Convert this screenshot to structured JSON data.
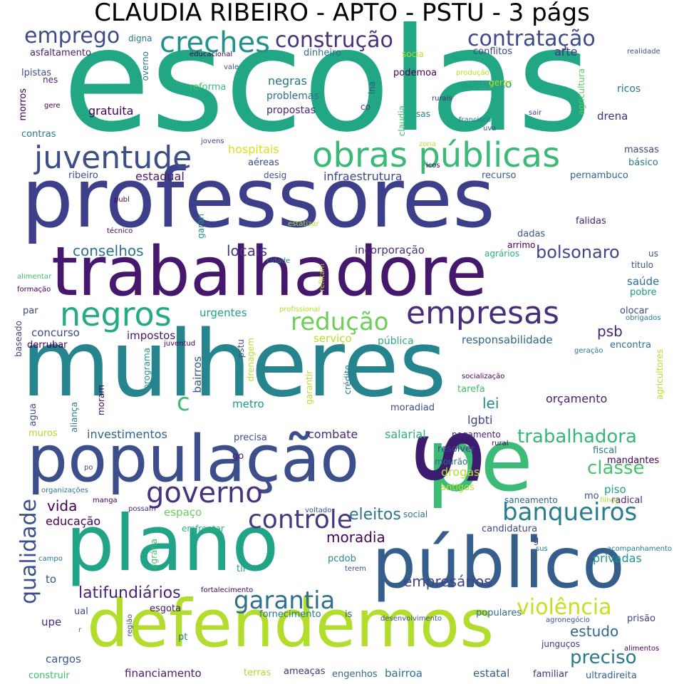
{
  "title": "CLAUDIA RIBEIRO - APTO - PSTU - 3 págs",
  "colormap": "viridis",
  "words": [
    {
      "text": "escolas",
      "weight": 1.0,
      "color": "#22a784"
    },
    {
      "text": "professores",
      "weight": 0.92,
      "color": "#3d3f8b"
    },
    {
      "text": "mulheres",
      "weight": 0.9,
      "color": "#25848e"
    },
    {
      "text": "trabalhadore",
      "weight": 0.78,
      "color": "#45186d"
    },
    {
      "text": "plano",
      "weight": 0.7,
      "color": "#20a386"
    },
    {
      "text": "defendemos",
      "weight": 0.68,
      "color": "#b2dd2d"
    },
    {
      "text": "público",
      "weight": 0.64,
      "color": "#355e8d"
    },
    {
      "text": "população",
      "weight": 0.58,
      "color": "#3c4f8a"
    },
    {
      "text": "pe",
      "weight": 0.55,
      "color": "#3bbb75"
    },
    {
      "text": "s",
      "weight": 0.5,
      "color": "#3b1c6f"
    },
    {
      "text": "obras públicas",
      "weight": 0.4,
      "color": "#3aba76"
    },
    {
      "text": "juventude",
      "weight": 0.38,
      "color": "#3d4e8a"
    },
    {
      "text": "negros",
      "weight": 0.36,
      "color": "#25ab82"
    },
    {
      "text": "empresas",
      "weight": 0.35,
      "color": "#472d7b"
    },
    {
      "text": "governo",
      "weight": 0.34,
      "color": "#46337e"
    },
    {
      "text": "creches",
      "weight": 0.33,
      "color": "#21918c"
    },
    {
      "text": "controle",
      "weight": 0.32,
      "color": "#443983"
    },
    {
      "text": "banqueiros",
      "weight": 0.3,
      "color": "#277f8e"
    },
    {
      "text": "garantia",
      "weight": 0.3,
      "color": "#2c718e"
    },
    {
      "text": "redução",
      "weight": 0.29,
      "color": "#6ece58"
    },
    {
      "text": "emprego",
      "weight": 0.28,
      "color": "#3e4c8a"
    },
    {
      "text": "contratação",
      "weight": 0.28,
      "color": "#3e4a89"
    },
    {
      "text": "construção",
      "weight": 0.27,
      "color": "#46327e"
    },
    {
      "text": "qualidade",
      "weight": 0.28,
      "color": "#3b518b"
    },
    {
      "text": "violência",
      "weight": 0.27,
      "color": "#c5e021"
    },
    {
      "text": "preciso",
      "weight": 0.25,
      "color": "#2a778e"
    },
    {
      "text": "trabalhadora",
      "weight": 0.24,
      "color": "#35b779"
    },
    {
      "text": "classe",
      "weight": 0.23,
      "color": "#4ac16d"
    },
    {
      "text": "bolsonaro",
      "weight": 0.22,
      "color": "#3f4788"
    },
    {
      "text": "latifundiários",
      "weight": 0.21,
      "color": "#482576"
    },
    {
      "text": "eleitos",
      "weight": 0.21,
      "color": "#2a768e"
    },
    {
      "text": "moradia",
      "weight": 0.21,
      "color": "#450457"
    },
    {
      "text": "c",
      "weight": 0.2,
      "color": "#3fbc73"
    },
    {
      "text": "vida",
      "weight": 0.19,
      "color": "#440154"
    },
    {
      "text": "empresários",
      "weight": 0.19,
      "color": "#404588"
    },
    {
      "text": "estudo",
      "weight": 0.19,
      "color": "#31688e"
    },
    {
      "text": "conselhos",
      "weight": 0.17,
      "color": "#2d718e"
    },
    {
      "text": "locais",
      "weight": 0.17,
      "color": "#453781"
    },
    {
      "text": "psb",
      "weight": 0.17,
      "color": "#482475"
    },
    {
      "text": "lei",
      "weight": 0.17,
      "color": "#24878e"
    },
    {
      "text": "privadas",
      "weight": 0.15,
      "color": "#1f958b"
    },
    {
      "text": "hospitais",
      "weight": 0.14,
      "color": "#d8e219"
    },
    {
      "text": "estadual",
      "weight": 0.14,
      "color": "#481a6c"
    },
    {
      "text": "infraestrutura",
      "weight": 0.14,
      "color": "#3e4989"
    },
    {
      "text": "gratuita",
      "weight": 0.14,
      "color": "#440154"
    },
    {
      "text": "negras",
      "weight": 0.14,
      "color": "#2c728e"
    },
    {
      "text": "aumento",
      "weight": 0.14,
      "color": "#1f9e89"
    },
    {
      "text": "arte",
      "weight": 0.14,
      "color": "#46337e"
    },
    {
      "text": "orçamento",
      "weight": 0.14,
      "color": "#482173"
    },
    {
      "text": "lgbti",
      "weight": 0.14,
      "color": "#3f4889"
    },
    {
      "text": "combate",
      "weight": 0.14,
      "color": "#472c7a"
    },
    {
      "text": "salarial",
      "weight": 0.14,
      "color": "#2db27d"
    },
    {
      "text": "drogas",
      "weight": 0.14,
      "color": "#b5de2b"
    },
    {
      "text": "investimentos",
      "weight": 0.14,
      "color": "#33638d"
    },
    {
      "text": "educação",
      "weight": 0.14,
      "color": "#440154"
    },
    {
      "text": "incorporação",
      "weight": 0.13,
      "color": "#472f7d"
    },
    {
      "text": "responsabilidade",
      "weight": 0.13,
      "color": "#33638d"
    },
    {
      "text": "impostos",
      "weight": 0.13,
      "color": "#481769"
    },
    {
      "text": "urgentes",
      "weight": 0.13,
      "color": "#1fa088"
    },
    {
      "text": "concurso",
      "weight": 0.13,
      "color": "#3e4a89"
    },
    {
      "text": "metro",
      "weight": 0.13,
      "color": "#1f978b"
    },
    {
      "text": "bairros",
      "weight": 0.13,
      "color": "#3a538b"
    },
    {
      "text": "financiamento",
      "weight": 0.13,
      "color": "#482071"
    },
    {
      "text": "cargos",
      "weight": 0.13,
      "color": "#39568c"
    },
    {
      "text": "to",
      "weight": 0.13,
      "color": "#3d4d8a"
    },
    {
      "text": "upe",
      "weight": 0.13,
      "color": "#482576"
    },
    {
      "text": "espaço",
      "weight": 0.13,
      "color": "#6ccd5a"
    },
    {
      "text": "saúde",
      "weight": 0.13,
      "color": "#2e6e8e"
    },
    {
      "text": "piso",
      "weight": 0.13,
      "color": "#1f9e89"
    },
    {
      "text": "serviço",
      "weight": 0.13,
      "color": "#b8de29"
    },
    {
      "text": "pública",
      "weight": 0.12,
      "color": "#2ab07f"
    },
    {
      "text": "propostas",
      "weight": 0.12,
      "color": "#482878"
    },
    {
      "text": "problemas",
      "weight": 0.12,
      "color": "#2d708e"
    },
    {
      "text": "reforma",
      "weight": 0.11,
      "color": "#3fbc73"
    },
    {
      "text": "dinheiro",
      "weight": 0.11,
      "color": "#2e6d8e"
    },
    {
      "text": "conflitos",
      "weight": 0.11,
      "color": "#3f4889"
    },
    {
      "text": "asfaltamento",
      "weight": 0.11,
      "color": "#481b6d"
    },
    {
      "text": "lpistas",
      "weight": 0.11,
      "color": "#3b528b"
    },
    {
      "text": "podemoa",
      "weight": 0.11,
      "color": "#440154"
    },
    {
      "text": "ricos",
      "weight": 0.11,
      "color": "#2a788e"
    },
    {
      "text": "drena",
      "weight": 0.12,
      "color": "#472c7a"
    },
    {
      "text": "massas",
      "weight": 0.11,
      "color": "#3e4a89"
    },
    {
      "text": "pernambuco",
      "weight": 0.11,
      "color": "#33638d"
    },
    {
      "text": "recurso",
      "weight": 0.11,
      "color": "#365c8d"
    },
    {
      "text": "dadas",
      "weight": 0.11,
      "color": "#38598c"
    },
    {
      "text": "falidas",
      "weight": 0.11,
      "color": "#482677"
    },
    {
      "text": "aéreas",
      "weight": 0.11,
      "color": "#3e4989"
    },
    {
      "text": "desig",
      "weight": 0.1,
      "color": "#3b528b"
    },
    {
      "text": "contras",
      "weight": 0.11,
      "color": "#2a778e"
    },
    {
      "text": "ribeiro",
      "weight": 0.11,
      "color": "#3e4c8a"
    },
    {
      "text": "morros",
      "weight": 0.11,
      "color": "#440154"
    },
    {
      "text": "estatal",
      "weight": 0.12,
      "color": "#365d8d"
    },
    {
      "text": "familiar",
      "weight": 0.11,
      "color": "#46327e"
    },
    {
      "text": "ultradireita",
      "weight": 0.11,
      "color": "#33638d"
    },
    {
      "text": "bairroa",
      "weight": 0.12,
      "color": "#2b748e"
    },
    {
      "text": "engenhos",
      "weight": 0.11,
      "color": "#31688e"
    },
    {
      "text": "ameaças",
      "weight": 0.11,
      "color": "#46337e"
    },
    {
      "text": "terras",
      "weight": 0.11,
      "color": "#addc30"
    },
    {
      "text": "construir",
      "weight": 0.11,
      "color": "#3dbc74"
    },
    {
      "text": "junguços",
      "weight": 0.1,
      "color": "#453781"
    },
    {
      "text": "prisão",
      "weight": 0.11,
      "color": "#3f4788"
    },
    {
      "text": "populares",
      "weight": 0.11,
      "color": "#2e6e8e"
    },
    {
      "text": "fornecimento",
      "weight": 0.11,
      "color": "#2a768e"
    },
    {
      "text": "esgota",
      "weight": 0.11,
      "color": "#481668"
    },
    {
      "text": "ual",
      "weight": 0.11,
      "color": "#3d4d8a"
    },
    {
      "text": "pcdob",
      "weight": 0.11,
      "color": "#228c8d"
    },
    {
      "text": "tir",
      "weight": 0.11,
      "color": "#1f9e89"
    },
    {
      "text": "candidatura",
      "weight": 0.11,
      "color": "#3f4889"
    },
    {
      "text": "radical",
      "weight": 0.11,
      "color": "#482878"
    },
    {
      "text": "pobre",
      "weight": 0.11,
      "color": "#1f978b"
    },
    {
      "text": "olocar",
      "weight": 0.11,
      "color": "#3e4a89"
    },
    {
      "text": "encontra",
      "weight": 0.11,
      "color": "#2c718e"
    },
    {
      "text": "fiscal",
      "weight": 0.11,
      "color": "#2a768e"
    },
    {
      "text": "mandantes",
      "weight": 0.11,
      "color": "#440154"
    },
    {
      "text": "resolver",
      "weight": 0.11,
      "color": "#414487"
    },
    {
      "text": "pagamento",
      "weight": 0.1,
      "color": "#482173"
    },
    {
      "text": "moradiad",
      "weight": 0.11,
      "color": "#3e4c8a"
    },
    {
      "text": "tarefa",
      "weight": 0.11,
      "color": "#3fbc73"
    },
    {
      "text": "precisa",
      "weight": 0.11,
      "color": "#3b518b"
    },
    {
      "text": "muros",
      "weight": 0.11,
      "color": "#b2dd2d"
    },
    {
      "text": "agua",
      "weight": 0.11,
      "color": "#3b528b"
    },
    {
      "text": "par",
      "weight": 0.11,
      "color": "#3f4788"
    },
    {
      "text": "derrubar",
      "weight": 0.11,
      "color": "#440154"
    },
    {
      "text": "mourão",
      "weight": 0.1,
      "color": "#2e6e8e"
    },
    {
      "text": "antigos",
      "weight": 0.11,
      "color": "#b8de29"
    },
    {
      "text": "saneamento",
      "weight": 0.1,
      "color": "#33638d"
    },
    {
      "text": "social",
      "weight": 0.1,
      "color": "#2a788e"
    },
    {
      "text": "emfrentar",
      "weight": 0.1,
      "color": "#2db27d"
    },
    {
      "text": "go",
      "weight": 0.11,
      "color": "#481b6d"
    },
    {
      "text": "mo",
      "weight": 0.11,
      "color": "#3b528b"
    },
    {
      "text": "titulo",
      "weight": 0.1,
      "color": "#3b528b"
    },
    {
      "text": "us",
      "weight": 0.1,
      "color": "#3b528b"
    },
    {
      "text": "arrimo",
      "weight": 0.1,
      "color": "#440154"
    },
    {
      "text": "agrários",
      "weight": 0.1,
      "color": "#2db27d"
    },
    {
      "text": "gerar",
      "weight": 0.1,
      "color": "#bddf26"
    },
    {
      "text": "sas",
      "weight": 0.1,
      "color": "#2a788e"
    },
    {
      "text": "co",
      "weight": 0.1,
      "color": "#414487"
    },
    {
      "text": "nes",
      "weight": 0.1,
      "color": "#482878"
    },
    {
      "text": "digna",
      "weight": 0.1,
      "color": "#2a788e"
    },
    {
      "text": "socia",
      "weight": 0.1,
      "color": "#b8de29"
    },
    {
      "text": "gere",
      "weight": 0.07,
      "color": "#440154"
    },
    {
      "text": "overno",
      "weight": 0.09,
      "color": "#2a788e"
    },
    {
      "text": "educacional",
      "weight": 0.07,
      "color": "#440154"
    },
    {
      "text": "vale",
      "weight": 0.07,
      "color": "#3b528b"
    },
    {
      "text": "ina",
      "weight": 0.09,
      "color": "#3b528b"
    },
    {
      "text": "claudia",
      "weight": 0.09,
      "color": "#3fbc73"
    },
    {
      "text": "rurais",
      "weight": 0.07,
      "color": "#482878"
    },
    {
      "text": "produção",
      "weight": 0.07,
      "color": "#b8de29"
    },
    {
      "text": "francisco",
      "weight": 0.07,
      "color": "#2a788e"
    },
    {
      "text": "uva",
      "weight": 0.07,
      "color": "#3b528b"
    },
    {
      "text": "sair",
      "weight": 0.07,
      "color": "#414487"
    },
    {
      "text": "realidade",
      "weight": 0.07,
      "color": "#3b528b"
    },
    {
      "text": "agricultura",
      "weight": 0.09,
      "color": "#5ec962"
    },
    {
      "text": "básico",
      "weight": 0.1,
      "color": "#2a788e"
    },
    {
      "text": "zona",
      "weight": 0.07,
      "color": "#b8de29"
    },
    {
      "text": "icos",
      "weight": 0.07,
      "color": "#440154"
    },
    {
      "text": "jovens",
      "weight": 0.07,
      "color": "#414487"
    },
    {
      "text": "publ",
      "weight": 0.07,
      "color": "#440154"
    },
    {
      "text": "técnico",
      "weight": 0.07,
      "color": "#440154"
    },
    {
      "text": "garan",
      "weight": 0.09,
      "color": "#21918c"
    },
    {
      "text": "estatizar",
      "weight": 0.07,
      "color": "#b8de29"
    },
    {
      "text": "cidade",
      "weight": 0.07,
      "color": "#2a788e"
    },
    {
      "text": "reflitam",
      "weight": 0.07,
      "color": "#b8de29"
    },
    {
      "text": "alimentar",
      "weight": 0.07,
      "color": "#3fbc73"
    },
    {
      "text": "formação",
      "weight": 0.07,
      "color": "#440154"
    },
    {
      "text": "profissional",
      "weight": 0.07,
      "color": "#b8de29"
    },
    {
      "text": "obrigados",
      "weight": 0.07,
      "color": "#2a788e"
    },
    {
      "text": "baseado",
      "weight": 0.09,
      "color": "#414487"
    },
    {
      "text": "juventud",
      "weight": 0.07,
      "color": "#440154"
    },
    {
      "text": "programa",
      "weight": 0.09,
      "color": "#21918c"
    },
    {
      "text": "pstu",
      "weight": 0.09,
      "color": "#3b528b"
    },
    {
      "text": "drenagem",
      "weight": 0.09,
      "color": "#b8de29"
    },
    {
      "text": "garantir",
      "weight": 0.09,
      "color": "#b8de29"
    },
    {
      "text": "crédito",
      "weight": 0.09,
      "color": "#2a788e"
    },
    {
      "text": "geração",
      "weight": 0.07,
      "color": "#2a788e"
    },
    {
      "text": "agricultores",
      "weight": 0.09,
      "color": "#b8de29"
    },
    {
      "text": "socialização",
      "weight": 0.07,
      "color": "#440154"
    },
    {
      "text": "moram",
      "weight": 0.09,
      "color": "#440154"
    },
    {
      "text": "aliança",
      "weight": 0.09,
      "color": "#2a788e"
    },
    {
      "text": "rural",
      "weight": 0.07,
      "color": "#440154"
    },
    {
      "text": "po",
      "weight": 0.07,
      "color": "#414487"
    },
    {
      "text": "organizações",
      "weight": 0.07,
      "color": "#2a788e"
    },
    {
      "text": "manga",
      "weight": 0.07,
      "color": "#440154"
    },
    {
      "text": "possam",
      "weight": 0.07,
      "color": "#482878"
    },
    {
      "text": "voltado",
      "weight": 0.07,
      "color": "#3b528b"
    },
    {
      "text": "filhos",
      "weight": 0.07,
      "color": "#b8de29"
    },
    {
      "text": "campo",
      "weight": 0.07,
      "color": "#2a788e"
    },
    {
      "text": "agrária",
      "weight": 0.09,
      "color": "#3fbc73"
    },
    {
      "text": "terem",
      "weight": 0.07,
      "color": "#3b528b"
    },
    {
      "text": "acompanhamento",
      "weight": 0.07,
      "color": "#2a788e"
    },
    {
      "text": "sus",
      "weight": 0.07,
      "color": "#2a788e"
    },
    {
      "text": "g",
      "weight": 0.1,
      "color": "#414487"
    },
    {
      "text": "fortalecimento",
      "weight": 0.07,
      "color": "#440154"
    },
    {
      "text": "região",
      "weight": 0.07,
      "color": "#414487"
    },
    {
      "text": "r",
      "weight": 0.07,
      "color": "#2a788e"
    },
    {
      "text": "is",
      "weight": 0.1,
      "color": "#3b528b"
    },
    {
      "text": "desenvolvimento",
      "weight": 0.07,
      "color": "#3b528b"
    },
    {
      "text": "agronegócio",
      "weight": 0.07,
      "color": "#3b528b"
    },
    {
      "text": "pt",
      "weight": 0.1,
      "color": "#2a788e"
    },
    {
      "text": "alimentos",
      "weight": 0.07,
      "color": "#440154"
    }
  ]
}
